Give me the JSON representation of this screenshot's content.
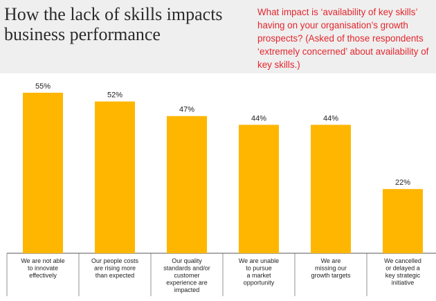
{
  "header": {
    "title": "How the lack of skills impacts business performance",
    "question": "What impact is ‘availability of key skills’ having on your organisation’s growth prospects? (Asked of those respondents ‘extremely concerned’ about availability of key skills.)"
  },
  "colors": {
    "bar": "#ffb600",
    "question_text": "#e3262d",
    "header_background": "#efefef"
  },
  "chart_data": {
    "type": "bar",
    "categories": [
      [
        "We are not able",
        "to innovate",
        "effectively"
      ],
      [
        "Our people costs",
        "are rising more",
        "than expected"
      ],
      [
        "Our quality",
        "standards and/or",
        "customer",
        "experience are",
        "impacted"
      ],
      [
        "We are unable",
        "to pursue",
        "a market",
        "opportunity"
      ],
      [
        "We are",
        "missing our",
        "growth targets"
      ],
      [
        "We cancelled",
        "or delayed a",
        "key strategic",
        "initiative"
      ]
    ],
    "values": [
      55,
      52,
      47,
      44,
      44,
      22
    ],
    "value_labels": [
      "55%",
      "52%",
      "47%",
      "44%",
      "44%",
      "22%"
    ],
    "ylim": [
      0,
      55
    ],
    "grid": false
  }
}
